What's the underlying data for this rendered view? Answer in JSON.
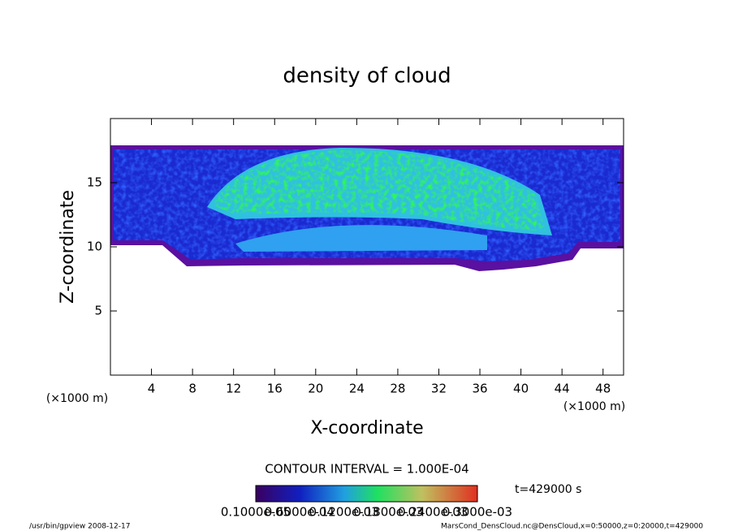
{
  "chart_data": {
    "type": "contour",
    "title": "density of cloud",
    "x_label": "X-coordinate",
    "y_label": "Z-coordinate",
    "x_unit": "(×1000 m)",
    "xlim": [
      0,
      50
    ],
    "xticks": [
      4,
      8,
      12,
      16,
      20,
      24,
      28,
      32,
      36,
      40,
      44,
      48
    ],
    "ylim": [
      0,
      20
    ],
    "yticks": [
      5,
      10,
      15
    ],
    "contour_interval": "CONTOUR INTERVAL = 1.000E-04",
    "time_label": "t=429000 s",
    "colorbar_labels": [
      {
        "value": 1e-06,
        "label": "0.1000e-05"
      },
      {
        "value": 6e-05,
        "label": "0.6000e-04"
      },
      {
        "value": 0.00012,
        "label": "0.1200e-03"
      },
      {
        "value": 0.00018,
        "label": "0.1800e-03"
      },
      {
        "value": 0.00024,
        "label": "0.2400e-03"
      },
      {
        "value": 0.0003,
        "label": "0.3000e-03"
      }
    ],
    "footer_left": "/usr/bin/gpview   2008-12-17",
    "footer_right": "MarsCond_DensCloud.nc@DensCloud,x=0:50000,z=0:20000,t=429000"
  }
}
